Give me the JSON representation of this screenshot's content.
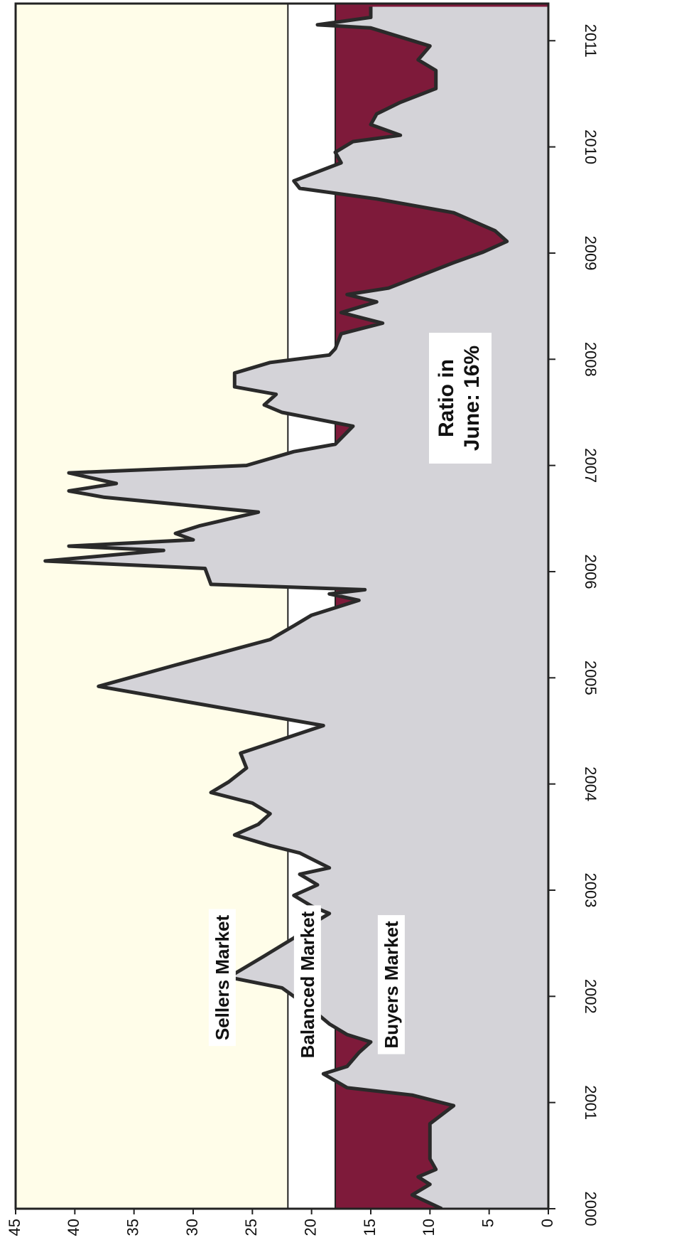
{
  "chart_data": {
    "type": "area",
    "x": [
      2000.0,
      2000.13,
      2000.23,
      2000.3,
      2000.37,
      2000.47,
      2000.8,
      2000.97,
      2001.07,
      2001.14,
      2001.27,
      2001.34,
      2001.47,
      2001.57,
      2001.64,
      2001.74,
      2001.88,
      2002.08,
      2002.18,
      2002.38,
      2002.55,
      2002.68,
      2002.78,
      2002.85,
      2002.95,
      2003.05,
      2003.15,
      2003.21,
      2003.35,
      2003.42,
      2003.52,
      2003.62,
      2003.72,
      2003.82,
      2003.92,
      2004.02,
      2004.15,
      2004.29,
      2004.42,
      2004.55,
      2004.92,
      2005.12,
      2005.36,
      2005.49,
      2005.59,
      2005.66,
      2005.73,
      2005.79,
      2005.83,
      2005.88,
      2006.03,
      2006.1,
      2006.2,
      2006.24,
      2006.3,
      2006.36,
      2006.43,
      2006.56,
      2006.7,
      2006.76,
      2006.83,
      2006.93,
      2007.0,
      2007.13,
      2007.2,
      2007.37,
      2007.5,
      2007.57,
      2007.67,
      2007.74,
      2007.87,
      2007.97,
      2008.04,
      2008.1,
      2008.24,
      2008.34,
      2008.44,
      2008.54,
      2008.61,
      2008.67,
      2008.91,
      2009.01,
      2009.11,
      2009.21,
      2009.38,
      2009.51,
      2009.61,
      2009.68,
      2009.85,
      2009.95,
      2010.05,
      2010.11,
      2010.21,
      2010.31,
      2010.42,
      2010.55,
      2010.72,
      2010.82,
      2010.95,
      2011.12,
      2011.15,
      2011.22,
      2011.32
    ],
    "values": [
      9,
      11.5,
      10,
      11,
      9.5,
      10,
      10,
      8,
      11.5,
      17,
      19,
      17,
      16,
      15,
      17,
      18.5,
      20,
      22.5,
      27,
      24,
      21.5,
      20,
      18.5,
      20,
      21.5,
      19.5,
      21,
      18.5,
      21,
      23.5,
      26.5,
      24.5,
      23.5,
      25,
      28.5,
      27,
      25.5,
      26,
      22.5,
      19,
      38,
      31.5,
      23.5,
      21.5,
      20,
      18,
      16,
      18.5,
      15.5,
      28.5,
      29,
      42.5,
      32.5,
      40.5,
      30,
      31.5,
      29.5,
      24.5,
      37.5,
      40.5,
      36.5,
      40.5,
      25.5,
      21.5,
      18,
      16.5,
      22.5,
      24,
      23,
      26.5,
      26.5,
      23.5,
      18.5,
      18,
      17.5,
      14,
      17.5,
      14.5,
      17,
      13.5,
      8,
      5.5,
      3.5,
      4.5,
      8,
      14.5,
      21,
      21.5,
      17.5,
      18,
      16.5,
      12.5,
      15,
      14.5,
      12.5,
      9.5,
      9.5,
      11,
      10,
      15,
      19.5,
      15,
      15
    ],
    "color": "#2a2a2a",
    "fill": "#d4d3d8",
    "zones": [
      {
        "name": "Sellers Market",
        "from": 22,
        "to": 45,
        "color": "#fffde9"
      },
      {
        "name": "Balanced Market",
        "from": 18,
        "to": 22,
        "color": "#ffffff"
      },
      {
        "name": "Buyers Market",
        "from": 0,
        "to": 18,
        "color": "#7e1a3a"
      }
    ],
    "annotation": [
      "Ratio in",
      "June: 16%"
    ],
    "xlim": [
      2000,
      2011.35
    ],
    "xticks": [
      2000,
      2001,
      2002,
      2003,
      2004,
      2005,
      2006,
      2007,
      2008,
      2009,
      2010,
      2011
    ],
    "ylim": [
      0,
      45
    ],
    "yticks": [
      0,
      5,
      10,
      15,
      20,
      25,
      30,
      35,
      40,
      45
    ]
  }
}
